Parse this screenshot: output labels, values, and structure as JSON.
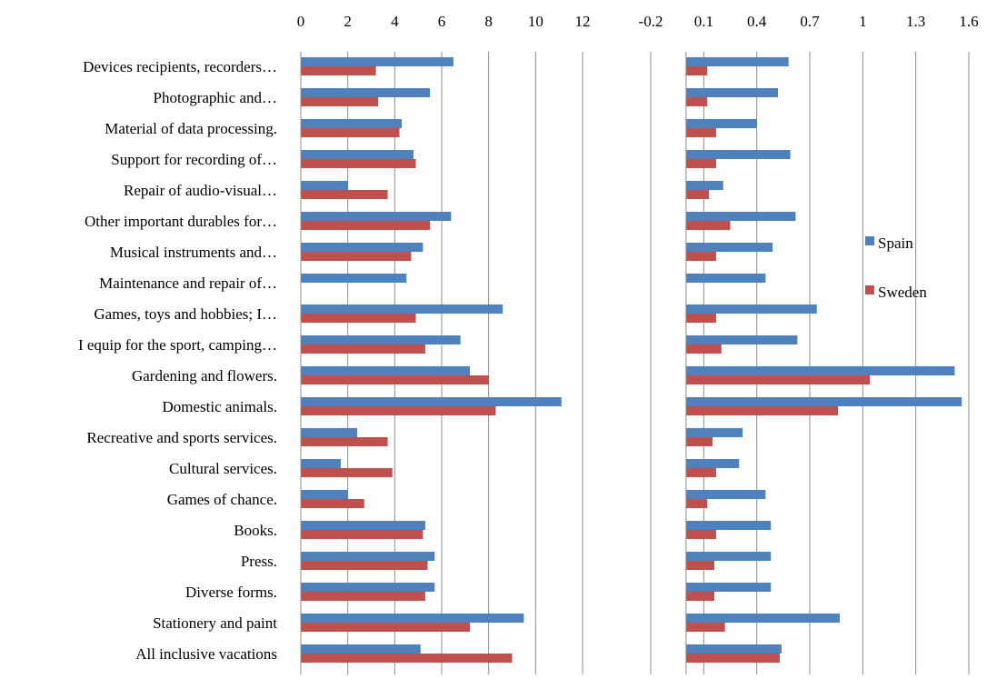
{
  "chart_data": [
    {
      "type": "bar",
      "orientation": "horizontal",
      "categories": [
        "Devices recipients, recorders…",
        "Photographic and…",
        "Material of data processing.",
        "Support for recording of…",
        "Repair of audio-visual…",
        "Other important durables for…",
        "Musical instruments and…",
        "Maintenance and repair of…",
        "Games, toys and hobbies; I…",
        "I equip for the sport, camping…",
        "Gardening and flowers.",
        "Domestic animals.",
        "Recreative and sports services.",
        "Cultural services.",
        "Games of chance.",
        "Books.",
        "Press.",
        "Diverse forms.",
        "Stationery and paint",
        "All inclusive vacations"
      ],
      "series": [
        {
          "name": "Spain",
          "color": "#4F81BD",
          "values": [
            6.5,
            5.5,
            4.3,
            4.8,
            2.0,
            6.4,
            5.2,
            4.5,
            8.6,
            6.8,
            7.2,
            11.1,
            2.4,
            1.7,
            2.0,
            5.3,
            5.7,
            5.7,
            9.5,
            5.1
          ]
        },
        {
          "name": "Sweden",
          "color": "#C0504D",
          "values": [
            3.2,
            3.3,
            4.2,
            4.9,
            3.7,
            5.5,
            4.7,
            0.0,
            4.9,
            5.3,
            8.0,
            8.3,
            3.7,
            3.9,
            2.7,
            5.2,
            5.4,
            5.3,
            7.2,
            9.0
          ]
        }
      ],
      "xlim": [
        0,
        12
      ],
      "xticks": [
        "0",
        "2",
        "4",
        "6",
        "8",
        "10",
        "12"
      ],
      "xtick_values": [
        0,
        2,
        4,
        6,
        8,
        10,
        12
      ],
      "grid": true
    },
    {
      "type": "bar",
      "orientation": "horizontal",
      "series": [
        {
          "name": "Spain",
          "color": "#4F81BD",
          "values": [
            0.58,
            0.52,
            0.4,
            0.59,
            0.21,
            0.62,
            0.49,
            0.45,
            0.74,
            0.63,
            1.52,
            1.56,
            0.32,
            0.3,
            0.45,
            0.48,
            0.48,
            0.48,
            0.87,
            0.54
          ]
        },
        {
          "name": "Sweden",
          "color": "#C0504D",
          "values": [
            0.12,
            0.12,
            0.17,
            0.17,
            0.13,
            0.25,
            0.17,
            0.0,
            0.17,
            0.2,
            1.04,
            0.86,
            0.15,
            0.17,
            0.12,
            0.17,
            0.16,
            0.16,
            0.22,
            0.53
          ]
        }
      ],
      "xlim": [
        -0.2,
        1.6
      ],
      "xticks": [
        "-0.2",
        "0.1",
        "0.4",
        "0.7",
        "1",
        "1.3",
        "1.6"
      ],
      "xtick_values": [
        -0.2,
        0.1,
        0.4,
        0.7,
        1.0,
        1.3,
        1.6
      ],
      "grid": true,
      "legend": {
        "placement": "right",
        "entries": [
          "Spain",
          "Sweden"
        ]
      }
    }
  ]
}
